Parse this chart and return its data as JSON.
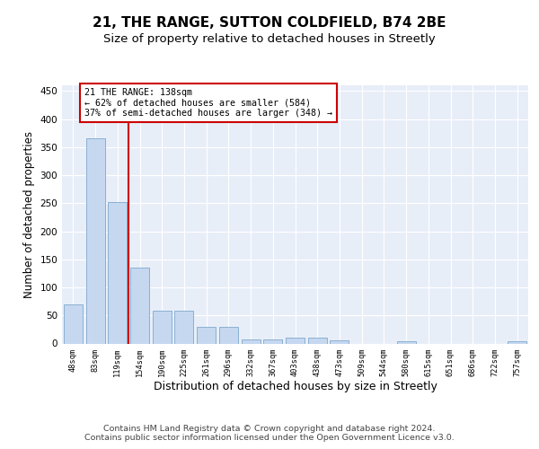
{
  "title1": "21, THE RANGE, SUTTON COLDFIELD, B74 2BE",
  "title2": "Size of property relative to detached houses in Streetly",
  "xlabel": "Distribution of detached houses by size in Streetly",
  "ylabel": "Number of detached properties",
  "bar_values": [
    70,
    365,
    252,
    135,
    59,
    59,
    30,
    30,
    8,
    8,
    10,
    10,
    5,
    0,
    0,
    4,
    0,
    0,
    0,
    0,
    4
  ],
  "x_labels": [
    "48sqm",
    "83sqm",
    "119sqm",
    "154sqm",
    "190sqm",
    "225sqm",
    "261sqm",
    "296sqm",
    "332sqm",
    "367sqm",
    "403sqm",
    "438sqm",
    "473sqm",
    "509sqm",
    "544sqm",
    "580sqm",
    "615sqm",
    "651sqm",
    "686sqm",
    "722sqm",
    "757sqm"
  ],
  "bar_color": "#c5d8f0",
  "bar_edge_color": "#7fa8cc",
  "vline_x_index": 2,
  "vline_color": "#cc0000",
  "annotation_text": "21 THE RANGE: 138sqm\n← 62% of detached houses are smaller (584)\n37% of semi-detached houses are larger (348) →",
  "box_edge_color": "#cc0000",
  "ylim": [
    0,
    460
  ],
  "yticks": [
    0,
    50,
    100,
    150,
    200,
    250,
    300,
    350,
    400,
    450
  ],
  "bg_color": "#e8eef8",
  "footer_text": "Contains HM Land Registry data © Crown copyright and database right 2024.\nContains public sector information licensed under the Open Government Licence v3.0.",
  "title1_fontsize": 11,
  "title2_fontsize": 9.5,
  "xlabel_fontsize": 9,
  "ylabel_fontsize": 8.5,
  "footer_fontsize": 6.8
}
